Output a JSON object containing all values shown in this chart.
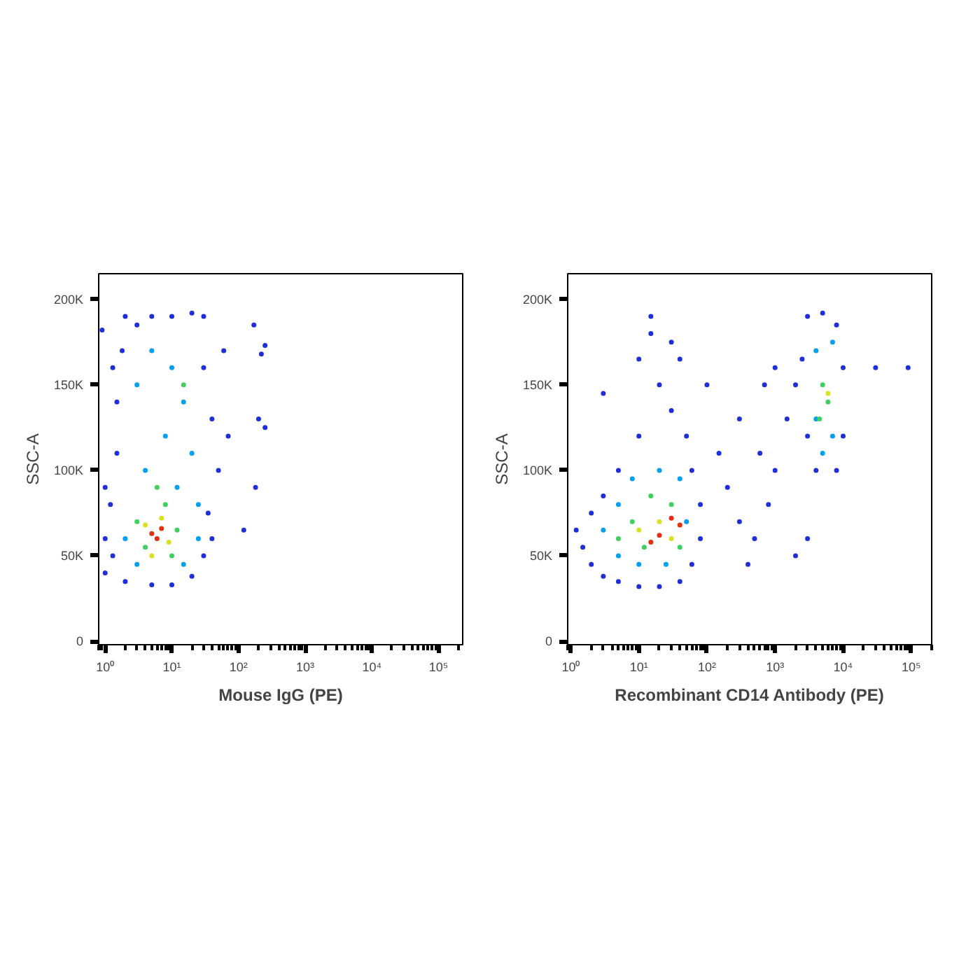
{
  "chart_data": [
    {
      "type": "scatter",
      "xlabel": "Mouse IgG (PE)",
      "ylabel": "SSC-A",
      "log": "x",
      "grid": false,
      "marker": "circle",
      "xlim": [
        0.8,
        230000
      ],
      "ylim": [
        -2000,
        215000
      ],
      "xticks": [
        {
          "value": 1,
          "label": "10⁰"
        },
        {
          "value": 10,
          "label": "10¹"
        },
        {
          "value": 100,
          "label": "10²"
        },
        {
          "value": 1000,
          "label": "10³"
        },
        {
          "value": 10000,
          "label": "10⁴"
        },
        {
          "value": 100000,
          "label": "10⁵"
        }
      ],
      "yticks": [
        0,
        {
          "value": 50000,
          "label": "50K"
        },
        {
          "value": 100000,
          "label": "100K"
        },
        {
          "value": 150000,
          "label": "150K"
        },
        {
          "value": 200000,
          "label": "200K"
        }
      ],
      "series": [
        {
          "color": "#1f2fd8",
          "x": [
            1,
            1,
            1.2,
            1.5,
            1.5,
            1.8,
            2,
            3,
            5,
            10,
            20,
            30,
            30,
            40,
            50,
            35,
            30,
            20,
            10,
            5,
            2,
            1.3,
            1,
            1.3,
            60,
            70,
            40,
            170,
            250,
            220,
            200,
            250,
            180,
            120,
            0.9
          ],
          "values": [
            40000,
            60000,
            80000,
            110000,
            140000,
            170000,
            190000,
            185000,
            190000,
            190000,
            192000,
            190000,
            160000,
            130000,
            100000,
            75000,
            50000,
            38000,
            33000,
            33000,
            35000,
            50000,
            90000,
            160000,
            170000,
            120000,
            60000,
            185000,
            173000,
            168000,
            130000,
            125000,
            90000,
            65000,
            182000
          ]
        },
        {
          "color": "#00a0f0",
          "x": [
            3,
            5,
            10,
            15,
            8,
            20,
            4,
            12,
            25,
            2,
            3,
            15,
            25
          ],
          "values": [
            150000,
            170000,
            160000,
            140000,
            120000,
            110000,
            100000,
            90000,
            80000,
            60000,
            45000,
            45000,
            60000
          ]
        },
        {
          "color": "#40d060",
          "x": [
            3,
            4,
            8,
            12,
            6,
            10,
            15
          ],
          "values": [
            70000,
            55000,
            80000,
            65000,
            90000,
            50000,
            150000
          ]
        },
        {
          "color": "#d8e020",
          "x": [
            4,
            7,
            9,
            5
          ],
          "values": [
            68000,
            72000,
            58000,
            50000
          ]
        },
        {
          "color": "#e03010",
          "x": [
            5,
            6,
            7
          ],
          "values": [
            63000,
            60000,
            66000
          ]
        }
      ]
    },
    {
      "type": "scatter",
      "xlabel": "Recombinant CD14 Antibody (PE)",
      "ylabel": "SSC-A",
      "log": "x",
      "grid": false,
      "marker": "circle",
      "xlim": [
        0.9,
        200000
      ],
      "ylim": [
        -2000,
        215000
      ],
      "xticks": [
        {
          "value": 1,
          "label": "10⁰"
        },
        {
          "value": 10,
          "label": "10¹"
        },
        {
          "value": 100,
          "label": "10²"
        },
        {
          "value": 1000,
          "label": "10³"
        },
        {
          "value": 10000,
          "label": "10⁴"
        },
        {
          "value": 100000,
          "label": "10⁵"
        }
      ],
      "yticks": [
        0,
        {
          "value": 50000,
          "label": "50K"
        },
        {
          "value": 100000,
          "label": "100K"
        },
        {
          "value": 150000,
          "label": "150K"
        },
        {
          "value": 200000,
          "label": "200K"
        }
      ],
      "series": [
        {
          "color": "#1f2fd8",
          "x": [
            1.2,
            1.5,
            2,
            3,
            5,
            10,
            20,
            40,
            60,
            80,
            80,
            60,
            50,
            30,
            20,
            10,
            5,
            3,
            2,
            10,
            30,
            15,
            40,
            100,
            150,
            200,
            300,
            500,
            800,
            1000,
            1500,
            2000,
            300,
            600,
            1000,
            700,
            3000,
            5000,
            8000,
            10000,
            10000,
            8000,
            4000,
            3000,
            2500,
            3000,
            2000,
            30000,
            90000,
            15,
            3,
            400
          ],
          "values": [
            65000,
            55000,
            45000,
            38000,
            35000,
            32000,
            32000,
            35000,
            45000,
            60000,
            80000,
            100000,
            120000,
            135000,
            150000,
            120000,
            100000,
            85000,
            75000,
            165000,
            175000,
            180000,
            165000,
            150000,
            110000,
            90000,
            70000,
            60000,
            80000,
            100000,
            130000,
            150000,
            130000,
            110000,
            160000,
            150000,
            190000,
            192000,
            185000,
            160000,
            120000,
            100000,
            100000,
            120000,
            165000,
            60000,
            50000,
            160000,
            160000,
            190000,
            145000,
            45000
          ]
        },
        {
          "color": "#00a0f0",
          "x": [
            3,
            5,
            8,
            20,
            40,
            50,
            10,
            25,
            5,
            4000,
            7000,
            7000,
            4000,
            5000
          ],
          "values": [
            65000,
            80000,
            95000,
            100000,
            95000,
            70000,
            45000,
            45000,
            50000,
            170000,
            175000,
            120000,
            130000,
            110000
          ]
        },
        {
          "color": "#40d060",
          "x": [
            5,
            8,
            15,
            30,
            40,
            12,
            5000,
            6000,
            4500
          ],
          "values": [
            60000,
            70000,
            85000,
            80000,
            55000,
            55000,
            150000,
            140000,
            130000
          ]
        },
        {
          "color": "#d8e020",
          "x": [
            10,
            20,
            30,
            6000
          ],
          "values": [
            65000,
            70000,
            60000,
            145000
          ]
        },
        {
          "color": "#e03010",
          "x": [
            20,
            30,
            40,
            15
          ],
          "values": [
            62000,
            72000,
            68000,
            58000
          ]
        }
      ]
    }
  ]
}
